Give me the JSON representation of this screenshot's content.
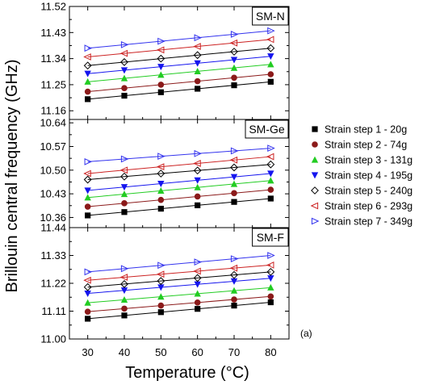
{
  "chart_data": {
    "type": "scatter",
    "xlabel": "Temperature (°C)",
    "ylabel": "Brillouin central frequency (GHz)",
    "x_ticks": [
      "30",
      "40",
      "50",
      "60",
      "70",
      "80"
    ],
    "xlim": [
      25,
      85
    ],
    "x": [
      30,
      40,
      50,
      60,
      70,
      80
    ],
    "annotation": "(a)",
    "legend_position": "right",
    "legend": [
      {
        "name": "Strain step 1 - 20g",
        "marker": "square",
        "color": "#000000"
      },
      {
        "name": "Strain step 2 - 74g",
        "marker": "circle",
        "color": "#8b1a1a"
      },
      {
        "name": "Strain step 3 - 131g",
        "marker": "triangle-up",
        "color": "#22cc22"
      },
      {
        "name": "Strain step 4 - 195g",
        "marker": "triangle-down",
        "color": "#1515ee"
      },
      {
        "name": "Strain step 5 - 240g",
        "marker": "diamond-open",
        "color": "#000000"
      },
      {
        "name": "Strain step 6 - 293g",
        "marker": "triangle-left-open",
        "color": "#cc2222"
      },
      {
        "name": "Strain step 7 - 349g",
        "marker": "triangle-right-open",
        "color": "#3333ee"
      }
    ],
    "panels": [
      {
        "label": "SM-N",
        "ylim": [
          11.13,
          11.52
        ],
        "y_ticks": [
          "11.16",
          "11.25",
          "11.34",
          "11.43",
          "11.52"
        ],
        "series": [
          {
            "name": "Strain step 1 - 20g",
            "values": [
              11.2,
              11.212,
              11.224,
              11.236,
              11.248,
              11.26
            ]
          },
          {
            "name": "Strain step 2 - 74g",
            "values": [
              11.226,
              11.238,
              11.25,
              11.262,
              11.274,
              11.286
            ]
          },
          {
            "name": "Strain step 3 - 131g",
            "values": [
              11.26,
              11.272,
              11.284,
              11.296,
              11.308,
              11.32
            ]
          },
          {
            "name": "Strain step 4 - 195g",
            "values": [
              11.288,
              11.3,
              11.312,
              11.324,
              11.336,
              11.348
            ]
          },
          {
            "name": "Strain step 5 - 240g",
            "values": [
              11.316,
              11.328,
              11.34,
              11.352,
              11.364,
              11.376
            ]
          },
          {
            "name": "Strain step 6 - 293g",
            "values": [
              11.346,
              11.358,
              11.37,
              11.382,
              11.394,
              11.406
            ]
          },
          {
            "name": "Strain step 7 - 349g",
            "values": [
              11.376,
              11.388,
              11.4,
              11.412,
              11.424,
              11.436
            ]
          }
        ]
      },
      {
        "label": "SM-Ge",
        "ylim": [
          10.33,
          10.65
        ],
        "y_ticks": [
          "10.36",
          "10.43",
          "10.50",
          "10.57",
          "10.64"
        ],
        "series": [
          {
            "name": "Strain step 1 - 20g",
            "values": [
              10.366,
              10.376,
              10.386,
              10.396,
              10.406,
              10.416
            ]
          },
          {
            "name": "Strain step 2 - 74g",
            "values": [
              10.392,
              10.402,
              10.412,
              10.422,
              10.432,
              10.442
            ]
          },
          {
            "name": "Strain step 3 - 131g",
            "values": [
              10.419,
              10.429,
              10.439,
              10.449,
              10.459,
              10.469
            ]
          },
          {
            "name": "Strain step 4 - 195g",
            "values": [
              10.44,
              10.45,
              10.46,
              10.47,
              10.48,
              10.49
            ]
          },
          {
            "name": "Strain step 5 - 240g",
            "values": [
              10.472,
              10.481,
              10.49,
              10.499,
              10.508,
              10.517
            ]
          },
          {
            "name": "Strain step 6 - 293g",
            "values": [
              10.49,
              10.5,
              10.51,
              10.52,
              10.53,
              10.54
            ]
          },
          {
            "name": "Strain step 7 - 349g",
            "values": [
              10.525,
              10.533,
              10.541,
              10.549,
              10.557,
              10.565
            ]
          }
        ]
      },
      {
        "label": "SM-F",
        "ylim": [
          11.0,
          11.44
        ],
        "y_ticks": [
          "11.00",
          "11.11",
          "11.22",
          "11.33",
          "11.44"
        ],
        "series": [
          {
            "name": "Strain step 1 - 20g",
            "values": [
              11.08,
              11.093,
              11.106,
              11.119,
              11.132,
              11.145
            ]
          },
          {
            "name": "Strain step 2 - 74g",
            "values": [
              11.108,
              11.12,
              11.132,
              11.144,
              11.156,
              11.168
            ]
          },
          {
            "name": "Strain step 3 - 131g",
            "values": [
              11.143,
              11.155,
              11.167,
              11.179,
              11.191,
              11.203
            ]
          },
          {
            "name": "Strain step 4 - 195g",
            "values": [
              11.18,
              11.192,
              11.204,
              11.216,
              11.228,
              11.24
            ]
          },
          {
            "name": "Strain step 5 - 240g",
            "values": [
              11.205,
              11.217,
              11.229,
              11.241,
              11.253,
              11.265
            ]
          },
          {
            "name": "Strain step 6 - 293g",
            "values": [
              11.232,
              11.244,
              11.256,
              11.268,
              11.28,
              11.292
            ]
          },
          {
            "name": "Strain step 7 - 349g",
            "values": [
              11.265,
              11.278,
              11.291,
              11.304,
              11.317,
              11.33
            ]
          }
        ]
      }
    ]
  }
}
